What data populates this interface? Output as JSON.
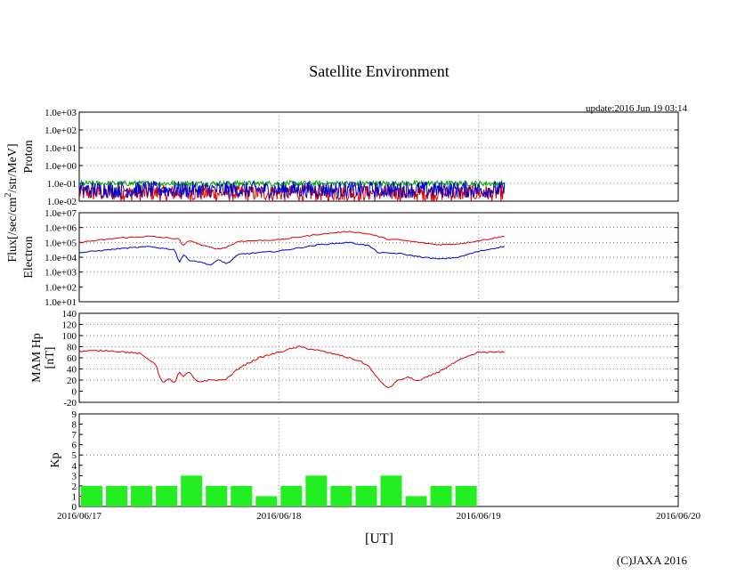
{
  "page": {
    "title": "Satellite Environment",
    "update": "update:2016 Jun 19 03:14",
    "x_axis_title": "[UT]",
    "copyright": "(C)JAXA 2016",
    "flux_label_main": "Flux[/sec/cm",
    "flux_label_sup": "2",
    "flux_label_tail": "/str/MeV]"
  },
  "chart_data": {
    "type": "line",
    "x_unit": "days since 2016/06/17 00:00 UT",
    "x_range": [
      0,
      3
    ],
    "x_ticks": [
      {
        "value": 0,
        "label": "2016/06/17"
      },
      {
        "value": 1,
        "label": "2016/06/18"
      },
      {
        "value": 2,
        "label": "2016/06/19"
      },
      {
        "value": 3,
        "label": "2016/06/20"
      }
    ],
    "data_end": 2.13,
    "panels": [
      {
        "id": "proton",
        "ylabel": "Proton",
        "scale": "log",
        "ylim": [
          0.01,
          1000
        ],
        "tick_labels": [
          "1.0e-02",
          "1.0e-01",
          "1.0e+00",
          "1.0e+01",
          "1.0e+02",
          "1.0e+03"
        ],
        "tick_values": [
          0.01,
          0.1,
          1,
          10,
          100,
          1000
        ],
        "grid_values": [
          0.1,
          1,
          10,
          100
        ],
        "series": [
          {
            "name": "proton-red",
            "color": "#dd0000",
            "x": [
              0,
              2.13
            ],
            "y": [
              0.03,
              0.03
            ],
            "style": "noise",
            "noise_range": [
              0.01,
              0.08
            ]
          },
          {
            "name": "proton-green",
            "color": "#00aa00",
            "x": [
              0,
              2.13
            ],
            "y": [
              0.1,
              0.1
            ],
            "style": "noise",
            "noise_range": [
              0.07,
              0.14
            ]
          },
          {
            "name": "proton-blue",
            "color": "#0000cc",
            "x": [
              0,
              2.13
            ],
            "y": [
              0.08,
              0.08
            ],
            "style": "noise",
            "noise_range": [
              0.015,
              0.13
            ]
          }
        ]
      },
      {
        "id": "electron",
        "ylabel": "Electron",
        "scale": "log",
        "ylim": [
          10,
          10000000
        ],
        "tick_labels": [
          "1.0e+01",
          "1.0e+02",
          "1.0e+03",
          "1.0e+04",
          "1.0e+05",
          "1.0e+06",
          "1.0e+07"
        ],
        "tick_values": [
          10,
          100,
          1000,
          10000,
          100000,
          1000000,
          10000000
        ],
        "grid_values": [
          1000,
          10000,
          100000,
          1000000
        ],
        "series": [
          {
            "name": "electron-red",
            "color": "#dd0000",
            "x": [
              0,
              0.2,
              0.35,
              0.5,
              0.52,
              0.55,
              0.62,
              0.7,
              0.74,
              0.8,
              1.0,
              1.2,
              1.35,
              1.45,
              1.55,
              1.6,
              1.7,
              1.8,
              1.9,
              2.0,
              2.13
            ],
            "y": [
              100000,
              200000,
              260000,
              170000,
              55000,
              140000,
              60000,
              35000,
              50000,
              120000,
              150000,
              350000,
              550000,
              380000,
              160000,
              150000,
              100000,
              70000,
              80000,
              130000,
              260000
            ]
          },
          {
            "name": "electron-blue",
            "color": "#0000cc",
            "x": [
              0,
              0.2,
              0.35,
              0.48,
              0.5,
              0.52,
              0.55,
              0.6,
              0.66,
              0.7,
              0.74,
              0.8,
              1.0,
              1.2,
              1.35,
              1.45,
              1.5,
              1.6,
              1.7,
              1.8,
              1.9,
              2.0,
              2.13
            ],
            "y": [
              20000,
              38000,
              52000,
              32000,
              4000,
              15000,
              6500,
              5000,
              3000,
              7000,
              3500,
              16000,
              26000,
              70000,
              100000,
              60000,
              20000,
              18000,
              11000,
              7500,
              10000,
              25000,
              55000
            ]
          }
        ]
      },
      {
        "id": "hp",
        "ylabel_line1": "MAM Hp",
        "ylabel_line2": "[nT]",
        "scale": "linear",
        "ylim": [
          -20,
          140
        ],
        "tick_labels": [
          "-20",
          "0",
          "20",
          "40",
          "60",
          "80",
          "100",
          "120",
          "140"
        ],
        "tick_values": [
          -20,
          0,
          20,
          40,
          60,
          80,
          100,
          120,
          140
        ],
        "grid_values": [
          20,
          40,
          60,
          80,
          100,
          120
        ],
        "series": [
          {
            "name": "hp-red",
            "color": "#dd0000",
            "x": [
              0,
              0.15,
              0.3,
              0.38,
              0.4,
              0.42,
              0.45,
              0.48,
              0.5,
              0.52,
              0.55,
              0.58,
              0.6,
              0.65,
              0.72,
              0.75,
              0.8,
              0.9,
              1.0,
              1.1,
              1.2,
              1.3,
              1.4,
              1.45,
              1.5,
              1.55,
              1.58,
              1.6,
              1.65,
              1.7,
              1.8,
              1.9,
              2.0,
              2.13
            ],
            "y": [
              72,
              73,
              68,
              50,
              30,
              14,
              22,
              15,
              35,
              25,
              35,
              20,
              17,
              20,
              20,
              25,
              42,
              60,
              70,
              80,
              73,
              65,
              55,
              45,
              20,
              5,
              15,
              20,
              25,
              18,
              35,
              55,
              70,
              70
            ]
          }
        ]
      },
      {
        "id": "kp",
        "ylabel": "Kp",
        "scale": "linear",
        "ylim": [
          0,
          9
        ],
        "tick_labels": [
          "0",
          "1",
          "2",
          "3",
          "4",
          "5",
          "6",
          "7",
          "8",
          "9"
        ],
        "tick_values": [
          0,
          1,
          2,
          3,
          4,
          5,
          6,
          7,
          8,
          9
        ],
        "grid_values": [
          5
        ],
        "bar_color": "#22ee22",
        "bars": [
          {
            "start": 0.0,
            "value": 2
          },
          {
            "start": 0.125,
            "value": 2
          },
          {
            "start": 0.25,
            "value": 2
          },
          {
            "start": 0.375,
            "value": 2
          },
          {
            "start": 0.5,
            "value": 3
          },
          {
            "start": 0.625,
            "value": 2
          },
          {
            "start": 0.75,
            "value": 2
          },
          {
            "start": 0.875,
            "value": 1
          },
          {
            "start": 1.0,
            "value": 2
          },
          {
            "start": 1.125,
            "value": 3
          },
          {
            "start": 1.25,
            "value": 2
          },
          {
            "start": 1.375,
            "value": 2
          },
          {
            "start": 1.5,
            "value": 3
          },
          {
            "start": 1.625,
            "value": 1
          },
          {
            "start": 1.75,
            "value": 2
          },
          {
            "start": 1.875,
            "value": 2
          }
        ]
      }
    ]
  }
}
